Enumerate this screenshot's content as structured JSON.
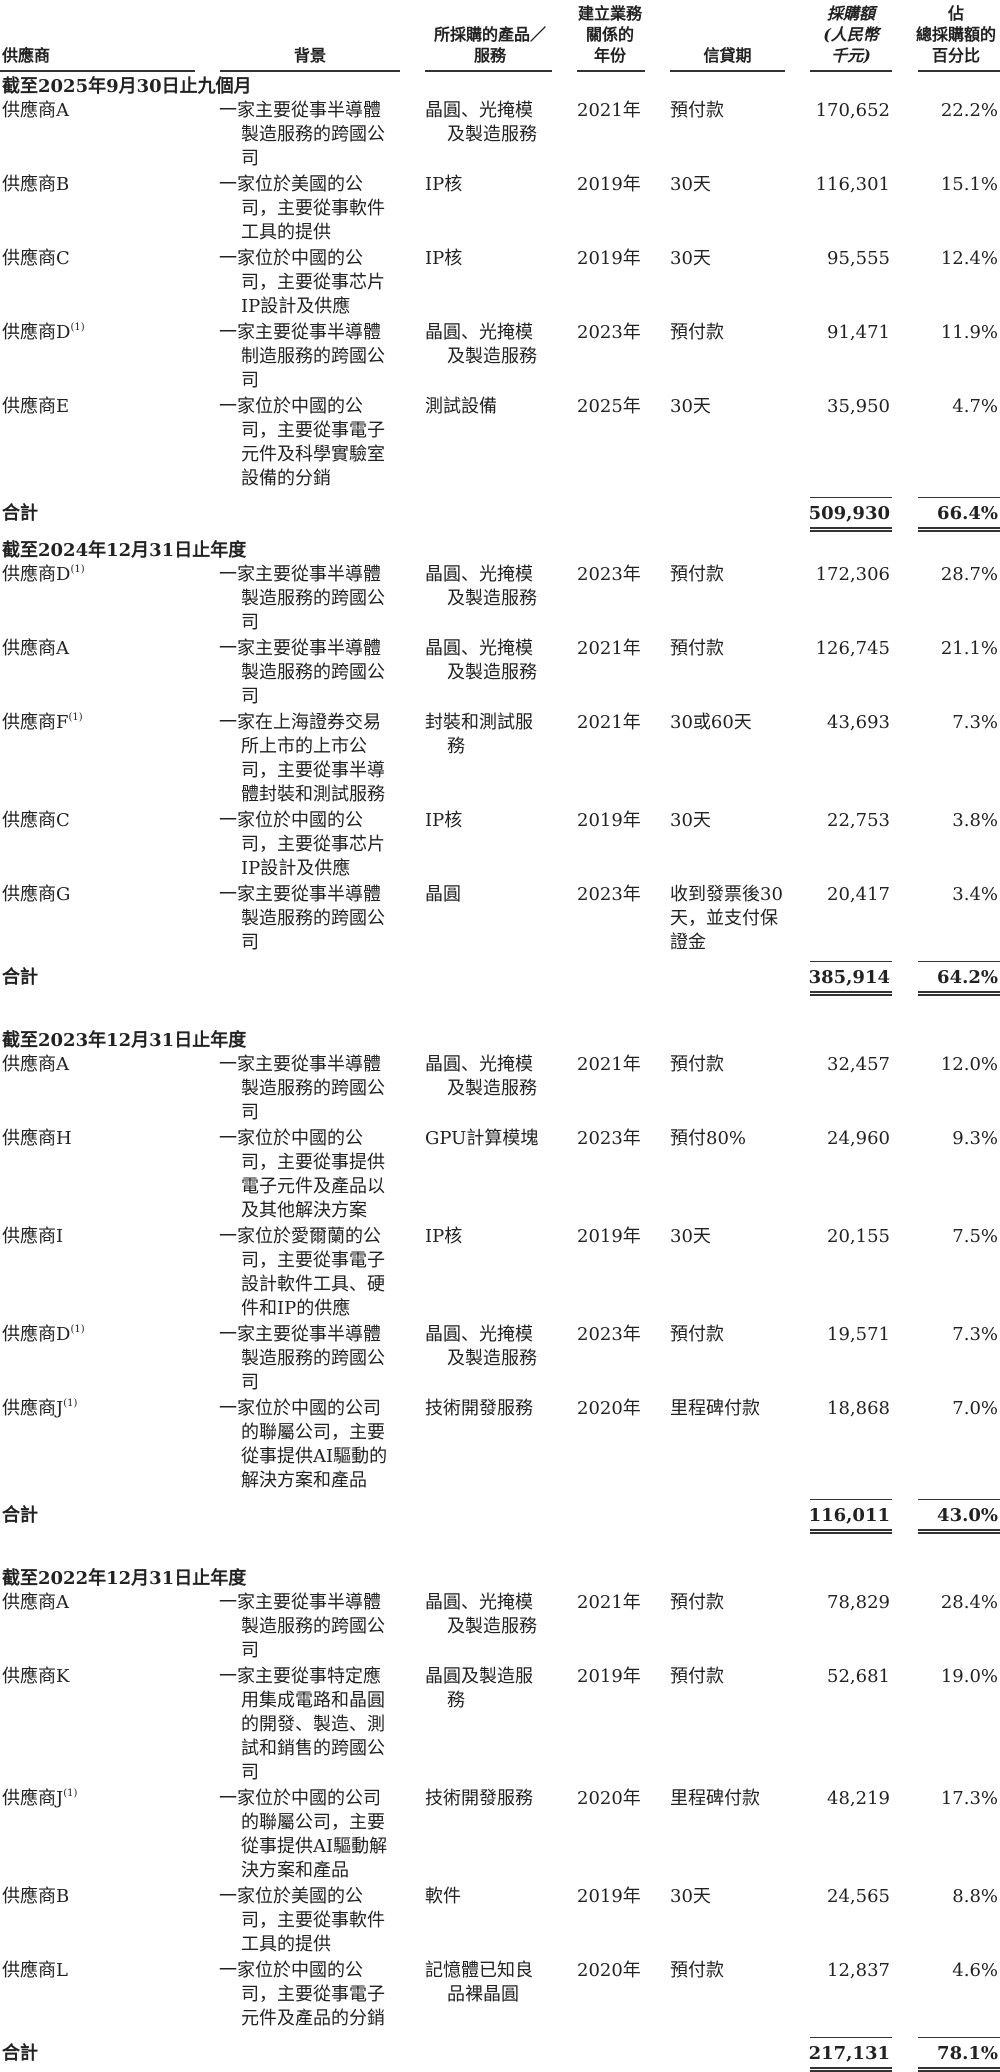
{
  "headers": {
    "supplier": [
      "供應商"
    ],
    "background": [
      "背景"
    ],
    "products": [
      "所採購的產品／",
      "服務"
    ],
    "year": [
      "建立業務",
      "關係的",
      "年份"
    ],
    "credit": [
      "信貸期"
    ],
    "amount": [
      "採購額",
      "(人民幣",
      "千元)"
    ],
    "pct": [
      "佔",
      "總採購額的",
      "百分比"
    ]
  },
  "total_label": "合計",
  "sections": [
    {
      "title": "截至2025年9月30日止九個月",
      "rows": [
        {
          "supplier": "供應商A",
          "note": "",
          "background": [
            "一家主要從事半導體",
            "製造服務的跨國公",
            "司"
          ],
          "products": [
            "晶圓、光掩模",
            "及製造服務"
          ],
          "year": "2021年",
          "credit": [
            "預付款"
          ],
          "amount": "170,652",
          "pct": "22.2%"
        },
        {
          "supplier": "供應商B",
          "note": "",
          "background": [
            "一家位於美國的公",
            "司，主要從事軟件",
            "工具的提供"
          ],
          "products": [
            "IP核"
          ],
          "year": "2019年",
          "credit": [
            "30天"
          ],
          "amount": "116,301",
          "pct": "15.1%"
        },
        {
          "supplier": "供應商C",
          "note": "",
          "background": [
            "一家位於中國的公",
            "司，主要從事芯片",
            "IP設計及供應"
          ],
          "products": [
            "IP核"
          ],
          "year": "2019年",
          "credit": [
            "30天"
          ],
          "amount": "95,555",
          "pct": "12.4%"
        },
        {
          "supplier": "供應商D",
          "note": "(1)",
          "background": [
            "一家主要從事半導體",
            "制造服務的跨國公",
            "司"
          ],
          "products": [
            "晶圓、光掩模",
            "及製造服務"
          ],
          "year": "2023年",
          "credit": [
            "預付款"
          ],
          "amount": "91,471",
          "pct": "11.9%"
        },
        {
          "supplier": "供應商E",
          "note": "",
          "background": [
            "一家位於中國的公",
            "司，主要從事電子",
            "元件及科學實驗室",
            "設備的分銷"
          ],
          "products": [
            "測試設備"
          ],
          "year": "2025年",
          "credit": [
            "30天"
          ],
          "amount": "35,950",
          "pct": "4.7%"
        }
      ],
      "total": {
        "amount": "509,930",
        "pct": "66.4%"
      }
    },
    {
      "title": "截至2024年12月31日止年度",
      "rows": [
        {
          "supplier": "供應商D",
          "note": "(1)",
          "background": [
            "一家主要從事半導體",
            "製造服務的跨國公",
            "司"
          ],
          "products": [
            "晶圓、光掩模",
            "及製造服務"
          ],
          "year": "2023年",
          "credit": [
            "預付款"
          ],
          "amount": "172,306",
          "pct": "28.7%"
        },
        {
          "supplier": "供應商A",
          "note": "",
          "background": [
            "一家主要從事半導體",
            "製造服務的跨國公",
            "司"
          ],
          "products": [
            "晶圓、光掩模",
            "及製造服務"
          ],
          "year": "2021年",
          "credit": [
            "預付款"
          ],
          "amount": "126,745",
          "pct": "21.1%"
        },
        {
          "supplier": "供應商F",
          "note": "(1)",
          "background": [
            "一家在上海證券交易",
            "所上市的上市公",
            "司，主要從事半導",
            "體封裝和測試服務"
          ],
          "products": [
            "封裝和測試服",
            "務"
          ],
          "year": "2021年",
          "credit": [
            "30或60天"
          ],
          "amount": "43,693",
          "pct": "7.3%"
        },
        {
          "supplier": "供應商C",
          "note": "",
          "background": [
            "一家位於中國的公",
            "司，主要從事芯片",
            "IP設計及供應"
          ],
          "products": [
            "IP核"
          ],
          "year": "2019年",
          "credit": [
            "30天"
          ],
          "amount": "22,753",
          "pct": "3.8%"
        },
        {
          "supplier": "供應商G",
          "note": "",
          "background": [
            "一家主要從事半導體",
            "製造服務的跨國公",
            "司"
          ],
          "products": [
            "晶圓"
          ],
          "year": "2023年",
          "credit": [
            "收到發票後30",
            "天，並支付保",
            "證金"
          ],
          "amount": "20,417",
          "pct": "3.4%"
        }
      ],
      "total": {
        "amount": "385,914",
        "pct": "64.2%"
      }
    },
    {
      "title": "截至2023年12月31日止年度",
      "rows": [
        {
          "supplier": "供應商A",
          "note": "",
          "background": [
            "一家主要從事半導體",
            "製造服務的跨國公",
            "司"
          ],
          "products": [
            "晶圓、光掩模",
            "及製造服務"
          ],
          "year": "2021年",
          "credit": [
            "預付款"
          ],
          "amount": "32,457",
          "pct": "12.0%"
        },
        {
          "supplier": "供應商H",
          "note": "",
          "background": [
            "一家位於中國的公",
            "司，主要從事提供",
            "電子元件及產品以",
            "及其他解決方案"
          ],
          "products": [
            "GPU計算模塊"
          ],
          "year": "2023年",
          "credit": [
            "預付80%"
          ],
          "amount": "24,960",
          "pct": "9.3%"
        },
        {
          "supplier": "供應商I",
          "note": "",
          "background": [
            "一家位於愛爾蘭的公",
            "司，主要從事電子",
            "設計軟件工具、硬",
            "件和IP的供應"
          ],
          "products": [
            "IP核"
          ],
          "year": "2019年",
          "credit": [
            "30天"
          ],
          "amount": "20,155",
          "pct": "7.5%"
        },
        {
          "supplier": "供應商D",
          "note": "(1)",
          "background": [
            "一家主要從事半導體",
            "製造服務的跨國公",
            "司"
          ],
          "products": [
            "晶圓、光掩模",
            "及製造服務"
          ],
          "year": "2023年",
          "credit": [
            "預付款"
          ],
          "amount": "19,571",
          "pct": "7.3%"
        },
        {
          "supplier": "供應商J",
          "note": "(1)",
          "background": [
            "一家位於中國的公司",
            "的聯屬公司，主要",
            "從事提供AI驅動的",
            "解決方案和產品"
          ],
          "products": [
            "技術開發服務"
          ],
          "year": "2020年",
          "credit": [
            "里程碑付款"
          ],
          "amount": "18,868",
          "pct": "7.0%"
        }
      ],
      "total": {
        "amount": "116,011",
        "pct": "43.0%"
      }
    },
    {
      "title": "截至2022年12月31日止年度",
      "rows": [
        {
          "supplier": "供應商A",
          "note": "",
          "background": [
            "一家主要從事半導體",
            "製造服務的跨國公",
            "司"
          ],
          "products": [
            "晶圓、光掩模",
            "及製造服務"
          ],
          "year": "2021年",
          "credit": [
            "預付款"
          ],
          "amount": "78,829",
          "pct": "28.4%"
        },
        {
          "supplier": "供應商K",
          "note": "",
          "background": [
            "一家主要從事特定應",
            "用集成電路和晶圓",
            "的開發、製造、測",
            "試和銷售的跨國公",
            "司"
          ],
          "products": [
            "晶圓及製造服",
            "務"
          ],
          "year": "2019年",
          "credit": [
            "預付款"
          ],
          "amount": "52,681",
          "pct": "19.0%"
        },
        {
          "supplier": "供應商J",
          "note": "(1)",
          "background": [
            "一家位於中國的公司",
            "的聯屬公司，主要",
            "從事提供AI驅動解",
            "決方案和產品"
          ],
          "products": [
            "技術開發服務"
          ],
          "year": "2020年",
          "credit": [
            "里程碑付款"
          ],
          "amount": "48,219",
          "pct": "17.3%"
        },
        {
          "supplier": "供應商B",
          "note": "",
          "background": [
            "一家位於美國的公",
            "司，主要從事軟件",
            "工具的提供"
          ],
          "products": [
            "軟件"
          ],
          "year": "2019年",
          "credit": [
            "30天"
          ],
          "amount": "24,565",
          "pct": "8.8%"
        },
        {
          "supplier": "供應商L",
          "note": "",
          "background": [
            "一家位於中國的公",
            "司，主要從事電子",
            "元件及產品的分銷"
          ],
          "products": [
            "記憶體已知良",
            "品裸晶圓"
          ],
          "year": "2020年",
          "credit": [
            "預付款"
          ],
          "amount": "12,837",
          "pct": "4.6%"
        }
      ],
      "total": {
        "amount": "217,131",
        "pct": "78.1%"
      }
    }
  ]
}
